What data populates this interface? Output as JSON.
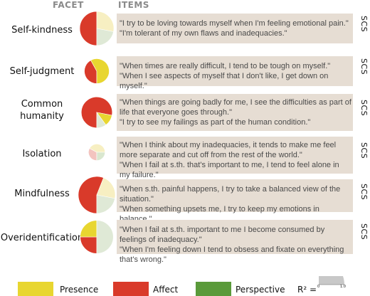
{
  "header": {
    "facet": "FACET",
    "items": "ITEMS"
  },
  "side_tag": "SCS",
  "colors": {
    "presence": "#e8d630",
    "affect": "#d93a2a",
    "perspective": "#5a9a3a",
    "box": "#e6ddd3",
    "r2": "#c8c8c8"
  },
  "facets": [
    {
      "label": "Self-kindness",
      "items": [
        "\"I try to be loving towards myself when I'm feeling emotional pain.\"",
        "\"I'm tolerant of my own flaws and inadequacies.\""
      ],
      "r2": 0.85,
      "presence": 0.28,
      "affect": 0.5,
      "perspective": 0.22
    },
    {
      "label": "Self-judgment",
      "items": [
        "\"When times are really difficult, I tend to be tough on myself.\"",
        "\"When I see aspects of myself that I don't like, I get down on myself.\""
      ],
      "r2": 0.45,
      "presence": 0.58,
      "affect": 0.42,
      "perspective": 0.0
    },
    {
      "label": "Common\nhumanity",
      "items": [
        "\"When things are going badly for me, I see the difficulties as part of life that everyone goes through.\"",
        "\"I try to see my failings as part of the human condition.\""
      ],
      "r2": 0.7,
      "presence": 0.12,
      "affect": 0.78,
      "perspective": 0.1
    },
    {
      "label": "Isolation",
      "items": [
        "\"When I think about my inadequacies, it tends to make me feel more separate and cut off from the rest of the world.\"",
        "\"When I fail at s.th. that's important to me, I tend to feel alone in my failure.\""
      ],
      "r2": 0.2,
      "presence": 0.42,
      "affect": 0.33,
      "perspective": 0.25
    },
    {
      "label": "Mindfulness",
      "items": [
        "\"When s.th. painful happens, I try to take a balanced view of the situation.\"",
        "\"When something upsets me, I try to keep my emotions in balance.\""
      ],
      "r2": 1.0,
      "presence": 0.22,
      "affect": 0.56,
      "perspective": 0.22
    },
    {
      "label": "Overidentification",
      "items": [
        "\"When I fail at s.th. important to me I become consumed by feelings of inadequacy.\"",
        "\"When I'm feeling down I tend to obsess and fixate on everything that's wrong.\""
      ],
      "r2": 0.8,
      "presence": 0.25,
      "affect": 0.25,
      "perspective": 0.5
    }
  ],
  "legend": {
    "presence": "Presence",
    "affect": "Affect",
    "perspective": "Perspective",
    "r2_label": "R² =",
    "r2_tick_min": "0",
    "r2_tick_max": "1.0"
  }
}
